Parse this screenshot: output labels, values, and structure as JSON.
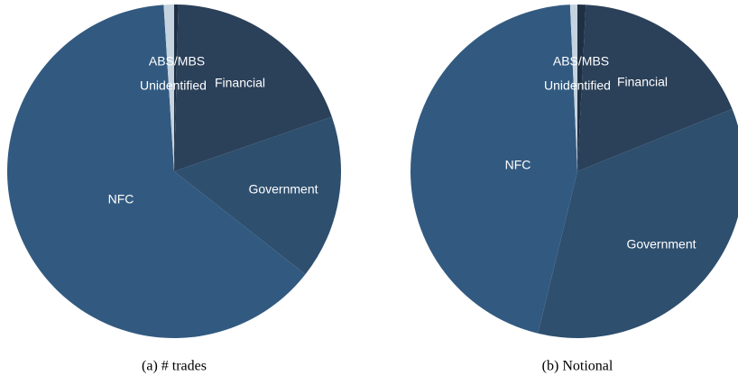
{
  "chart_data": [
    {
      "type": "pie",
      "title": "(a) # trades",
      "categories": [
        "ABS/MBS",
        "Financial",
        "Government",
        "NFC",
        "Unidentified"
      ],
      "values": [
        0.4,
        19.3,
        15.9,
        63.4,
        1.0
      ],
      "colors": [
        "#1f3044",
        "#2b4059",
        "#2e4f6e",
        "#325a80",
        "#c5d3e0"
      ]
    },
    {
      "type": "pie",
      "title": "(b) Notional",
      "categories": [
        "ABS/MBS",
        "Financial",
        "Government",
        "NFC",
        "Unidentified"
      ],
      "values": [
        0.8,
        18.1,
        34.9,
        45.5,
        0.7
      ],
      "colors": [
        "#1f3044",
        "#2b4059",
        "#2e4f6e",
        "#325a80",
        "#c5d3e0"
      ]
    }
  ]
}
